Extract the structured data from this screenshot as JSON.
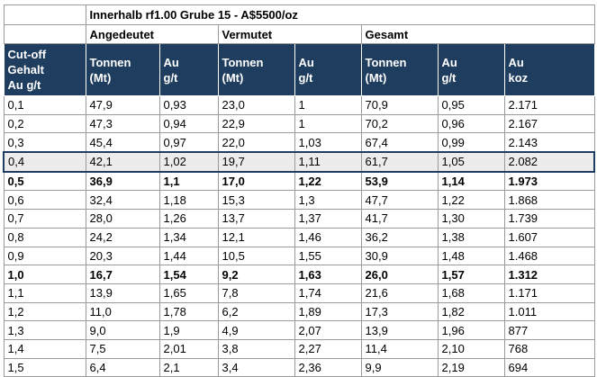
{
  "table": {
    "title": "Innerhalb rf1.00 Grube 15 - A$5500/oz",
    "groups": [
      "Angedeutet",
      "Vermutet",
      "Gesamt"
    ],
    "headers": [
      [
        "Cut-off",
        "Gehalt",
        "Au g/t"
      ],
      [
        "Tonnen",
        "(Mt)"
      ],
      [
        "Au",
        "g/t"
      ],
      [
        "Tonnen",
        "(Mt)"
      ],
      [
        "Au",
        "g/t"
      ],
      [
        "Tonnen",
        "(Mt)"
      ],
      [
        "Au",
        "g/t"
      ],
      [
        "Au",
        "koz"
      ]
    ],
    "rows": [
      [
        "0,1",
        "47,9",
        "0,93",
        "23,0",
        "1",
        "70,9",
        "0,95",
        "2.171"
      ],
      [
        "0,2",
        "47,3",
        "0,94",
        "22,9",
        "1",
        "70,2",
        "0,96",
        "2.167"
      ],
      [
        "0,3",
        "45,4",
        "0,97",
        "22,0",
        "1,03",
        "67,4",
        "0,99",
        "2.143"
      ],
      [
        "0,4",
        "42,1",
        "1,02",
        "19,7",
        "1,11",
        "61,7",
        "1,05",
        "2.082"
      ],
      [
        "0,5",
        "36,9",
        "1,1",
        "17,0",
        "1,22",
        "53,9",
        "1,14",
        "1.973"
      ],
      [
        "0,6",
        "32,4",
        "1,18",
        "15,3",
        "1,3",
        "47,7",
        "1,22",
        "1.868"
      ],
      [
        "0,7",
        "28,0",
        "1,26",
        "13,7",
        "1,37",
        "41,7",
        "1,30",
        "1.739"
      ],
      [
        "0,8",
        "24,2",
        "1,34",
        "12,1",
        "1,46",
        "36,2",
        "1,38",
        "1.607"
      ],
      [
        "0,9",
        "20,3",
        "1,44",
        "10,5",
        "1,55",
        "30,9",
        "1,48",
        "1.468"
      ],
      [
        "1,0",
        "16,7",
        "1,54",
        "9,2",
        "1,63",
        "26,0",
        "1,57",
        "1.312"
      ],
      [
        "1,1",
        "13,9",
        "1,65",
        "7,8",
        "1,74",
        "21,6",
        "1,68",
        "1.171"
      ],
      [
        "1,2",
        "11,0",
        "1,78",
        "6,2",
        "1,89",
        "17,3",
        "1,82",
        "1.011"
      ],
      [
        "1,3",
        "9,0",
        "1,9",
        "4,9",
        "2,07",
        "13,9",
        "1,96",
        "877"
      ],
      [
        "1,4",
        "7,5",
        "2,01",
        "3,8",
        "2,27",
        "11,4",
        "2,10",
        "768"
      ],
      [
        "1,5",
        "6,4",
        "2,1",
        "3,4",
        "2,36",
        "9,9",
        "2,19",
        "694"
      ]
    ],
    "bold_rows": [
      4,
      9
    ],
    "highlight_rows": [
      3
    ],
    "header_color": "#1f3d5f"
  }
}
